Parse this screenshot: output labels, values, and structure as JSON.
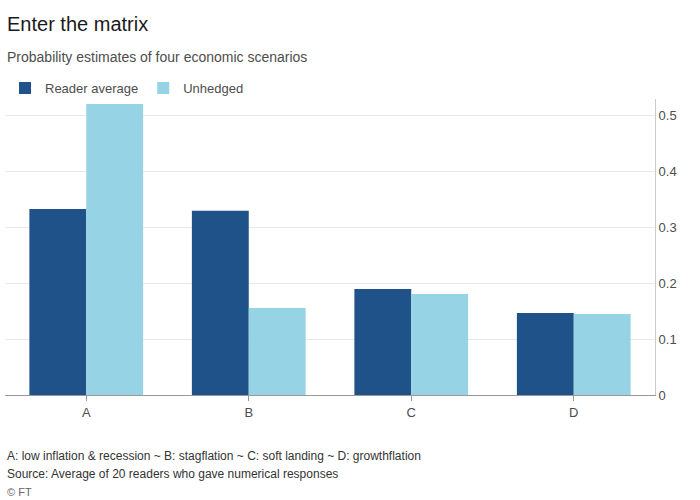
{
  "chart_data": {
    "type": "bar",
    "title": "Enter the matrix",
    "subtitle": "Probability estimates of four economic scenarios",
    "categories": [
      "A",
      "B",
      "C",
      "D"
    ],
    "series": [
      {
        "name": "Reader average",
        "color": "#1f5289",
        "values": [
          0.333,
          0.33,
          0.19,
          0.147
        ]
      },
      {
        "name": "Unhedged",
        "color": "#96d3e5",
        "values": [
          0.521,
          0.156,
          0.181,
          0.145
        ]
      }
    ],
    "ylim": [
      0,
      0.53
    ],
    "yticks": [
      0,
      0.1,
      0.2,
      0.3,
      0.4,
      0.5
    ],
    "grid": true,
    "legend": "top left",
    "annotations": [
      "A: low inflation & recession ~ B: stagflation ~ C: soft landing ~ D: growthflation",
      "Source: Average of 20 readers who gave numerical responses",
      "© FT"
    ]
  }
}
